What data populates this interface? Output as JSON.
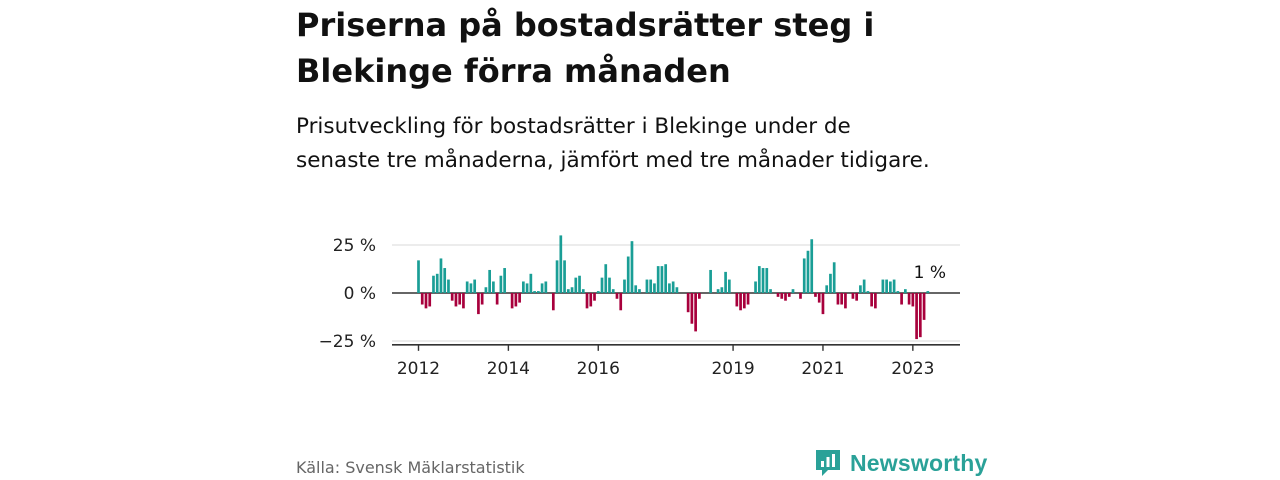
{
  "header": {
    "title": "Priserna på bostadsrätter steg i Blekinge förra månaden",
    "subtitle": "Prisutveckling för bostadsrätter i Blekinge under de senaste tre månaderna, jämfört med tre månader tidigare."
  },
  "footer": {
    "source": "Källa: Svensk Mäklarstatistik",
    "brand": "Newsworthy"
  },
  "colors": {
    "positive": "#1a9e96",
    "negative": "#a8003c",
    "grid": "#d9d9d9",
    "brand": "#2aa198"
  },
  "chart_data": {
    "type": "bar",
    "ylim": [
      -27,
      29
    ],
    "yticks": [
      25,
      0,
      -25
    ],
    "ytick_labels": [
      "25 %",
      "0 %",
      "−25 %"
    ],
    "xticks": [
      "2012",
      "2014",
      "2016",
      "2019",
      "2021",
      "2023"
    ],
    "annotation": "1 %",
    "grid": true,
    "series": [
      {
        "start_year": 2012,
        "start_month": 1,
        "values": [
          17,
          -6,
          -8,
          -7,
          9,
          10,
          18,
          13,
          7,
          -4,
          -7,
          -6,
          -8,
          6,
          5,
          7,
          -11,
          -6,
          3,
          12,
          6,
          -6,
          9,
          13,
          0,
          -8,
          -7,
          -5,
          6,
          5,
          10,
          1,
          1,
          5,
          6,
          0,
          -9,
          17,
          30,
          17,
          2,
          3,
          8,
          9,
          2,
          -8,
          -7,
          -4,
          1,
          8,
          15,
          8,
          2,
          -3,
          -9,
          7,
          19,
          27,
          4,
          2,
          0,
          7,
          7,
          5,
          14,
          14,
          15,
          5,
          6,
          3,
          0,
          0,
          -10,
          -16,
          -20,
          -3,
          0,
          0,
          12,
          0,
          2,
          3,
          11,
          7,
          0,
          -7,
          -9,
          -8,
          -6,
          0,
          6,
          14,
          13,
          13,
          2,
          0,
          -2,
          -3,
          -4,
          -2,
          2,
          0,
          -3,
          18,
          22,
          28,
          -2,
          -5,
          -11,
          4,
          10,
          16,
          -6,
          -6,
          -8,
          0,
          -3,
          -4,
          4,
          7,
          1,
          -7,
          -8,
          0,
          7,
          7,
          6,
          7,
          1,
          -6,
          2,
          -6,
          -7,
          -24,
          -23,
          -14,
          1
        ]
      }
    ]
  }
}
